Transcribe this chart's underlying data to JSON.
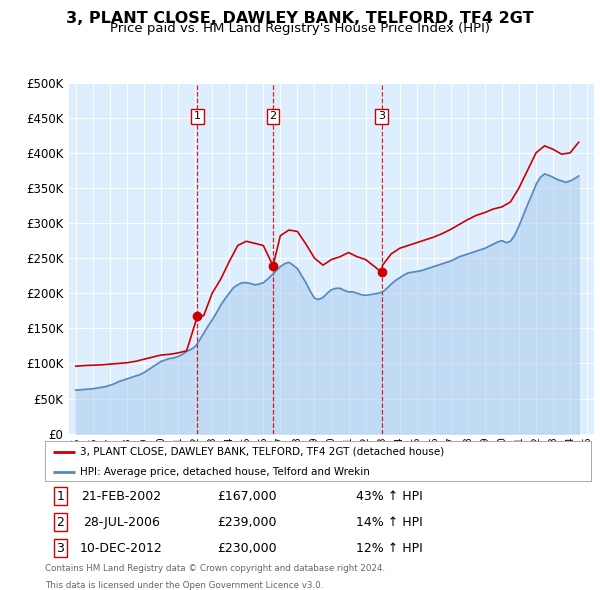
{
  "title": "3, PLANT CLOSE, DAWLEY BANK, TELFORD, TF4 2GT",
  "subtitle": "Price paid vs. HM Land Registry's House Price Index (HPI)",
  "title_fontsize": 11.5,
  "subtitle_fontsize": 9.5,
  "ylim": [
    0,
    500000
  ],
  "yticks": [
    0,
    50000,
    100000,
    150000,
    200000,
    250000,
    300000,
    350000,
    400000,
    450000,
    500000
  ],
  "xlim_start": 1994.6,
  "xlim_end": 2025.4,
  "plot_bg_color": "#ddeeff",
  "grid_color": "#ffffff",
  "legend_entries": [
    "3, PLANT CLOSE, DAWLEY BANK, TELFORD, TF4 2GT (detached house)",
    "HPI: Average price, detached house, Telford and Wrekin"
  ],
  "line_color_red": "#cc0000",
  "line_color_blue": "#5588bb",
  "fill_color_blue": "#aaccee",
  "transactions": [
    {
      "num": 1,
      "date_x": 2002.13,
      "price": 167000,
      "label": "21-FEB-2002",
      "pct": "43%",
      "dir": "↑"
    },
    {
      "num": 2,
      "date_x": 2006.57,
      "price": 239000,
      "label": "28-JUL-2006",
      "pct": "14%",
      "dir": "↑"
    },
    {
      "num": 3,
      "date_x": 2012.94,
      "price": 230000,
      "label": "10-DEC-2012",
      "pct": "12%",
      "dir": "↑"
    }
  ],
  "footer_line1": "Contains HM Land Registry data © Crown copyright and database right 2024.",
  "footer_line2": "This data is licensed under the Open Government Licence v3.0.",
  "hpi_data": {
    "x": [
      1995.0,
      1995.25,
      1995.5,
      1995.75,
      1996.0,
      1996.25,
      1996.5,
      1996.75,
      1997.0,
      1997.25,
      1997.5,
      1997.75,
      1998.0,
      1998.25,
      1998.5,
      1998.75,
      1999.0,
      1999.25,
      1999.5,
      1999.75,
      2000.0,
      2000.25,
      2000.5,
      2000.75,
      2001.0,
      2001.25,
      2001.5,
      2001.75,
      2002.0,
      2002.25,
      2002.5,
      2002.75,
      2003.0,
      2003.25,
      2003.5,
      2003.75,
      2004.0,
      2004.25,
      2004.5,
      2004.75,
      2005.0,
      2005.25,
      2005.5,
      2005.75,
      2006.0,
      2006.25,
      2006.5,
      2006.75,
      2007.0,
      2007.25,
      2007.5,
      2007.75,
      2008.0,
      2008.25,
      2008.5,
      2008.75,
      2009.0,
      2009.25,
      2009.5,
      2009.75,
      2010.0,
      2010.25,
      2010.5,
      2010.75,
      2011.0,
      2011.25,
      2011.5,
      2011.75,
      2012.0,
      2012.25,
      2012.5,
      2012.75,
      2013.0,
      2013.25,
      2013.5,
      2013.75,
      2014.0,
      2014.25,
      2014.5,
      2014.75,
      2015.0,
      2015.25,
      2015.5,
      2015.75,
      2016.0,
      2016.25,
      2016.5,
      2016.75,
      2017.0,
      2017.25,
      2017.5,
      2017.75,
      2018.0,
      2018.25,
      2018.5,
      2018.75,
      2019.0,
      2019.25,
      2019.5,
      2019.75,
      2020.0,
      2020.25,
      2020.5,
      2020.75,
      2021.0,
      2021.25,
      2021.5,
      2021.75,
      2022.0,
      2022.25,
      2022.5,
      2022.75,
      2023.0,
      2023.25,
      2023.5,
      2023.75,
      2024.0,
      2024.25,
      2024.5
    ],
    "y": [
      62000,
      62500,
      63000,
      63500,
      64000,
      65000,
      66000,
      67000,
      69000,
      71000,
      74000,
      76000,
      78000,
      80000,
      82000,
      84000,
      87000,
      91000,
      95000,
      99000,
      103000,
      105000,
      107000,
      108000,
      110000,
      113000,
      117000,
      120000,
      124000,
      133000,
      143000,
      153000,
      162000,
      172000,
      183000,
      192000,
      200000,
      208000,
      212000,
      215000,
      215000,
      214000,
      212000,
      213000,
      215000,
      220000,
      226000,
      232000,
      238000,
      242000,
      244000,
      240000,
      235000,
      225000,
      215000,
      203000,
      193000,
      191000,
      194000,
      200000,
      205000,
      207000,
      207000,
      204000,
      202000,
      202000,
      200000,
      198000,
      197000,
      198000,
      199000,
      200000,
      202000,
      207000,
      213000,
      218000,
      222000,
      226000,
      229000,
      230000,
      231000,
      232000,
      234000,
      236000,
      238000,
      240000,
      242000,
      244000,
      246000,
      249000,
      252000,
      254000,
      256000,
      258000,
      260000,
      262000,
      264000,
      267000,
      270000,
      273000,
      275000,
      272000,
      274000,
      283000,
      296000,
      311000,
      326000,
      340000,
      355000,
      365000,
      370000,
      368000,
      365000,
      362000,
      360000,
      358000,
      360000,
      363000,
      367000
    ]
  },
  "price_data": {
    "x": [
      1995.0,
      1995.5,
      1996.0,
      1996.5,
      1997.0,
      1997.5,
      1998.0,
      1998.5,
      1999.0,
      1999.5,
      2000.0,
      2000.5,
      2001.0,
      2001.5,
      2002.13,
      2002.5,
      2003.0,
      2003.5,
      2004.0,
      2004.5,
      2005.0,
      2005.5,
      2006.0,
      2006.57,
      2007.0,
      2007.5,
      2008.0,
      2008.5,
      2009.0,
      2009.5,
      2010.0,
      2010.5,
      2011.0,
      2011.5,
      2012.0,
      2012.94,
      2013.0,
      2013.5,
      2014.0,
      2014.5,
      2015.0,
      2015.5,
      2016.0,
      2016.5,
      2017.0,
      2017.5,
      2018.0,
      2018.5,
      2019.0,
      2019.5,
      2020.0,
      2020.5,
      2021.0,
      2021.5,
      2022.0,
      2022.5,
      2023.0,
      2023.5,
      2024.0,
      2024.5
    ],
    "y": [
      96000,
      97000,
      97500,
      98000,
      99000,
      100000,
      101000,
      103000,
      106000,
      109000,
      112000,
      113000,
      115000,
      118000,
      167000,
      168000,
      200000,
      220000,
      245000,
      268000,
      274000,
      271000,
      268000,
      239000,
      282000,
      290000,
      288000,
      270000,
      250000,
      240000,
      248000,
      252000,
      258000,
      252000,
      248000,
      230000,
      240000,
      256000,
      264000,
      268000,
      272000,
      276000,
      280000,
      285000,
      291000,
      298000,
      305000,
      311000,
      315000,
      320000,
      323000,
      330000,
      350000,
      375000,
      400000,
      410000,
      405000,
      398000,
      400000,
      415000
    ]
  }
}
